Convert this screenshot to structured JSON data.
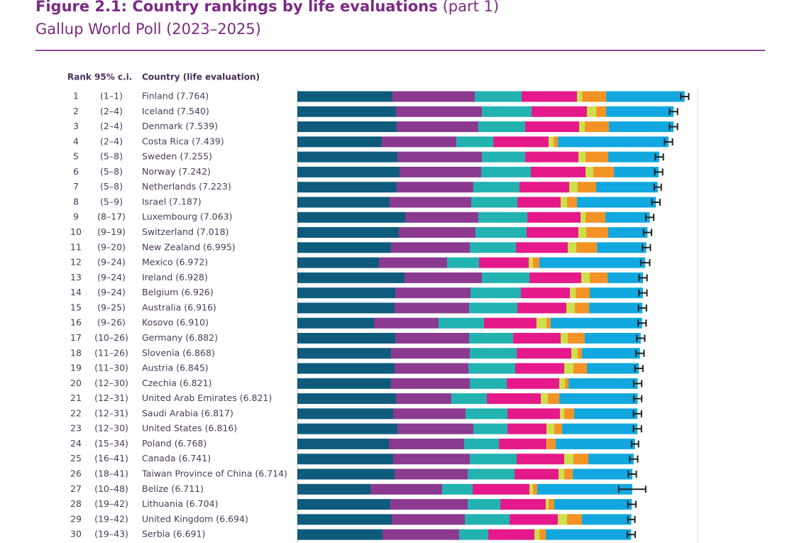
{
  "chart_data": {
    "type": "stacked-bar",
    "title": "Figure 2.1: Country rankings by life evaluations",
    "title_note": "(part 1)",
    "subtitle": "Gallup World Poll (2023–2025)",
    "headers": [
      "Rank",
      "95% c.i.",
      "Country (life evaluation)"
    ],
    "ranks": [
      1,
      2,
      3,
      4,
      5,
      6,
      7,
      8,
      9,
      10,
      11,
      12,
      13,
      14,
      15,
      16,
      17,
      18,
      19,
      20,
      21,
      22,
      23,
      24,
      25,
      26,
      27,
      28,
      29,
      30
    ],
    "rank_ci": [
      "(1–1)",
      "(2–4)",
      "(2–4)",
      "(2–4)",
      "(5–8)",
      "(5–8)",
      "(5–8)",
      "(5–9)",
      "(8–17)",
      "(9–19)",
      "(9–20)",
      "(9–24)",
      "(9–24)",
      "(9–24)",
      "(9–25)",
      "(9–26)",
      "(10–26)",
      "(11–26)",
      "(11–30)",
      "(12–30)",
      "(12–31)",
      "(12–31)",
      "(12–30)",
      "(15–34)",
      "(16–41)",
      "(18–41)",
      "(10–48)",
      "(19–42)",
      "(19–42)",
      "(19–43)"
    ],
    "categories": [
      "Finland (7.764)",
      "Iceland (7.540)",
      "Denmark (7.539)",
      "Costa Rica (7.439)",
      "Sweden (7.255)",
      "Norway (7.242)",
      "Netherlands (7.223)",
      "Israel (7.187)",
      "Luxembourg (7.063)",
      "Switzerland (7.018)",
      "New Zealand (6.995)",
      "Mexico (6.972)",
      "Ireland (6.928)",
      "Belgium (6.926)",
      "Australia (6.916)",
      "Kosovo (6.910)",
      "Germany (6.882)",
      "Slovenia (6.868)",
      "Austria (6.845)",
      "Czechia (6.821)",
      "United Arab Emirates (6.821)",
      "Saudi Arabia (6.817)",
      "United States (6.816)",
      "Poland (6.768)",
      "Canada (6.741)",
      "Taiwan Province of China (6.714)",
      "Belize (6.711)",
      "Lithuania (6.704)",
      "United Kingdom (6.694)",
      "Serbia (6.691)"
    ],
    "scores": [
      7.764,
      7.54,
      7.539,
      7.439,
      7.255,
      7.242,
      7.223,
      7.187,
      7.063,
      7.018,
      6.995,
      6.972,
      6.928,
      6.926,
      6.916,
      6.91,
      6.882,
      6.868,
      6.845,
      6.821,
      6.821,
      6.817,
      6.816,
      6.768,
      6.741,
      6.714,
      6.711,
      6.704,
      6.694,
      6.691
    ],
    "errors": [
      0.08,
      0.08,
      0.08,
      0.08,
      0.08,
      0.08,
      0.07,
      0.08,
      0.08,
      0.08,
      0.08,
      0.09,
      0.08,
      0.08,
      0.08,
      0.08,
      0.08,
      0.08,
      0.08,
      0.08,
      0.08,
      0.08,
      0.08,
      0.07,
      0.08,
      0.08,
      0.27,
      0.08,
      0.07,
      0.08
    ],
    "series": [
      {
        "color": "#0f5b7c",
        "values": [
          1.906,
          1.977,
          1.991,
          1.693,
          2.006,
          2.048,
          1.991,
          1.849,
          2.162,
          2.034,
          1.878,
          1.636,
          2.148,
          1.963,
          1.949,
          1.536,
          1.963,
          1.878,
          1.949,
          1.878,
          1.977,
          1.92,
          2.006,
          1.835,
          1.92,
          1.949,
          1.465,
          1.863,
          1.892,
          1.707
        ]
      },
      {
        "color": "#8b3a8f",
        "values": [
          1.65,
          1.721,
          1.636,
          1.494,
          1.693,
          1.636,
          1.536,
          1.636,
          1.465,
          1.536,
          1.579,
          1.366,
          1.551,
          1.508,
          1.494,
          1.294,
          1.479,
          1.579,
          1.479,
          1.579,
          1.11,
          1.451,
          1.522,
          1.508,
          1.536,
          1.465,
          1.437,
          1.551,
          1.465,
          1.536
        ]
      },
      {
        "color": "#22b3b1",
        "values": [
          0.939,
          0.996,
          0.939,
          0.74,
          0.868,
          0.996,
          0.925,
          0.925,
          0.982,
          1.024,
          0.925,
          0.64,
          0.953,
          1.01,
          0.967,
          0.91,
          0.882,
          0.939,
          0.939,
          0.74,
          0.711,
          0.839,
          0.683,
          0.697,
          0.939,
          0.939,
          0.612,
          0.654,
          0.896,
          0.583
        ]
      },
      {
        "color": "#e5198a",
        "values": [
          1.11,
          1.11,
          1.081,
          1.11,
          1.067,
          1.095,
          0.996,
          0.868,
          1.067,
          1.038,
          1.038,
          0.996,
          1.038,
          0.982,
          0.982,
          1.053,
          0.953,
          1.095,
          0.982,
          1.053,
          1.081,
          1.053,
          0.782,
          0.953,
          0.953,
          0.882,
          1.138,
          0.91,
          0.967,
          0.925
        ]
      },
      {
        "color": "#cddf4a",
        "values": [
          0.1,
          0.185,
          0.114,
          0.1,
          0.142,
          0.156,
          0.171,
          0.128,
          0.1,
          0.156,
          0.171,
          0.085,
          0.171,
          0.114,
          0.171,
          0.199,
          0.142,
          0.128,
          0.185,
          0.114,
          0.142,
          0.085,
          0.156,
          0.014,
          0.185,
          0.114,
          0.071,
          0.057,
          0.185,
          0.1
        ]
      },
      {
        "color": "#f39325",
        "values": [
          0.484,
          0.199,
          0.484,
          0.085,
          0.455,
          0.413,
          0.37,
          0.199,
          0.398,
          0.441,
          0.413,
          0.128,
          0.356,
          0.284,
          0.284,
          0.085,
          0.341,
          0.085,
          0.27,
          0.071,
          0.228,
          0.199,
          0.156,
          0.171,
          0.299,
          0.171,
          0.085,
          0.114,
          0.299,
          0.128
        ]
      },
      {
        "color": "#12a8df",
        "values": [
          1.575,
          1.352,
          1.294,
          2.217,
          1.024,
          0.898,
          1.234,
          1.582,
          0.889,
          0.789,
          0.991,
          2.121,
          0.711,
          1.065,
          1.069,
          1.833,
          1.122,
          1.164,
          1.041,
          1.386,
          1.572,
          1.27,
          1.511,
          1.59,
          0.909,
          1.194,
          1.903,
          1.555,
          0.99,
          1.712
        ]
      }
    ]
  }
}
